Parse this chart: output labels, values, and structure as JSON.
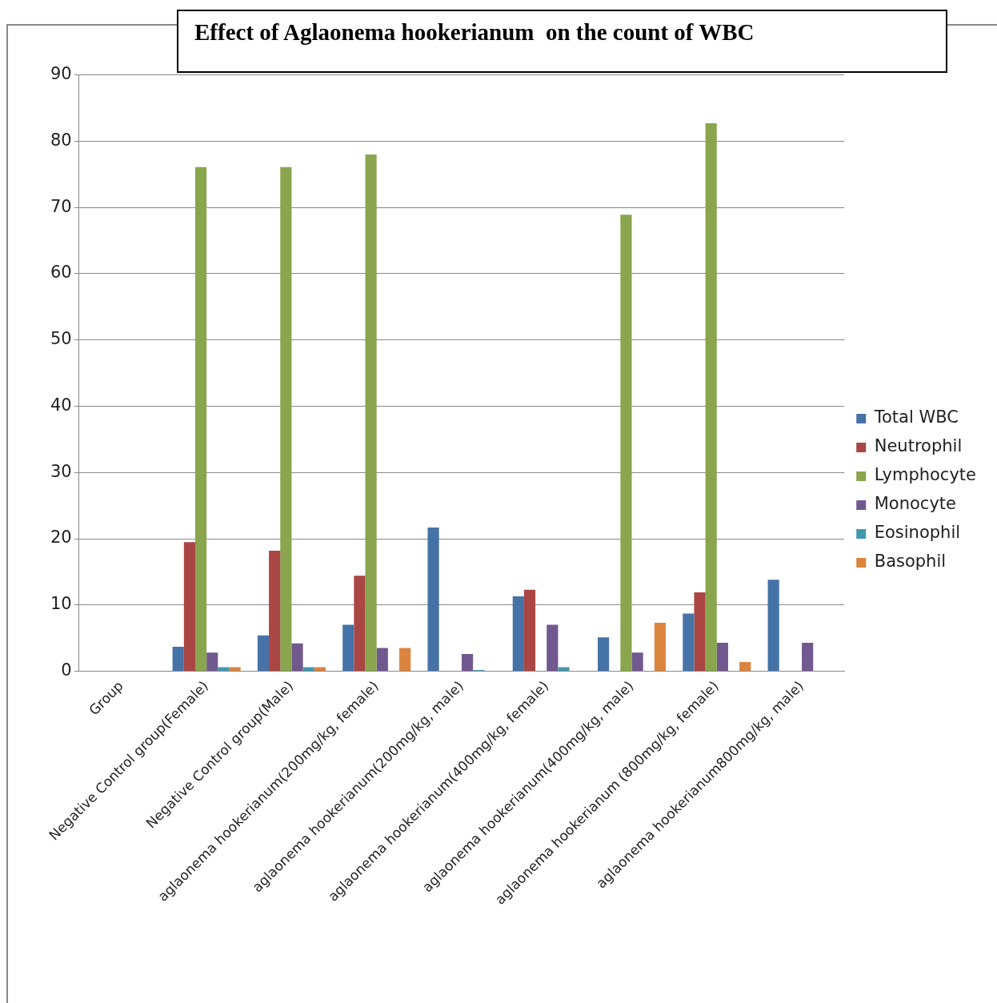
{
  "chart_data": {
    "type": "bar",
    "title": "Effect of Aglaonema hookerianum  on the count of WBC",
    "categories": [
      "Group",
      "Negative Control group(Female)",
      "Negative Control group(Male)",
      "aglaonema hookerianum(200mg/kg, female)",
      "aglaonema hookerianum(200mg/kg, male)",
      "aglaonema hookerianum(400mg/kg, female)",
      "aglaonema hookerianum(400mg/kg, male)",
      "aglaonema hookerianum (800mg/kg, female)",
      "aglaonema hookerianum800mg/kg, male)"
    ],
    "series": [
      {
        "name": "Total WBC",
        "color": "#4572a7",
        "values": [
          null,
          3.7,
          5.4,
          7.0,
          21.7,
          11.3,
          5.1,
          8.7,
          13.8
        ]
      },
      {
        "name": "Neutrophil",
        "color": "#aa4643",
        "values": [
          null,
          19.5,
          18.2,
          14.4,
          null,
          12.3,
          null,
          11.9,
          null
        ]
      },
      {
        "name": "Lymphocyte",
        "color": "#89a54e",
        "values": [
          null,
          76.1,
          76.1,
          78,
          null,
          null,
          68.9,
          82.7,
          null
        ]
      },
      {
        "name": "Monocyte",
        "color": "#71588f",
        "values": [
          null,
          2.8,
          4.2,
          3.5,
          2.6,
          7.0,
          2.8,
          4.3,
          4.3
        ]
      },
      {
        "name": "Eosinophil",
        "color": "#4198af",
        "values": [
          null,
          0.6,
          0.6,
          null,
          0.2,
          0.6,
          null,
          null,
          null
        ]
      },
      {
        "name": "Basophil",
        "color": "#db843d",
        "values": [
          null,
          0.6,
          0.6,
          3.5,
          null,
          null,
          7.3,
          1.4,
          null
        ]
      }
    ],
    "ylim": [
      0,
      90
    ],
    "yticks": [
      0,
      10,
      20,
      30,
      40,
      50,
      60,
      70,
      80,
      90
    ],
    "grid": "y",
    "legend": "right"
  }
}
